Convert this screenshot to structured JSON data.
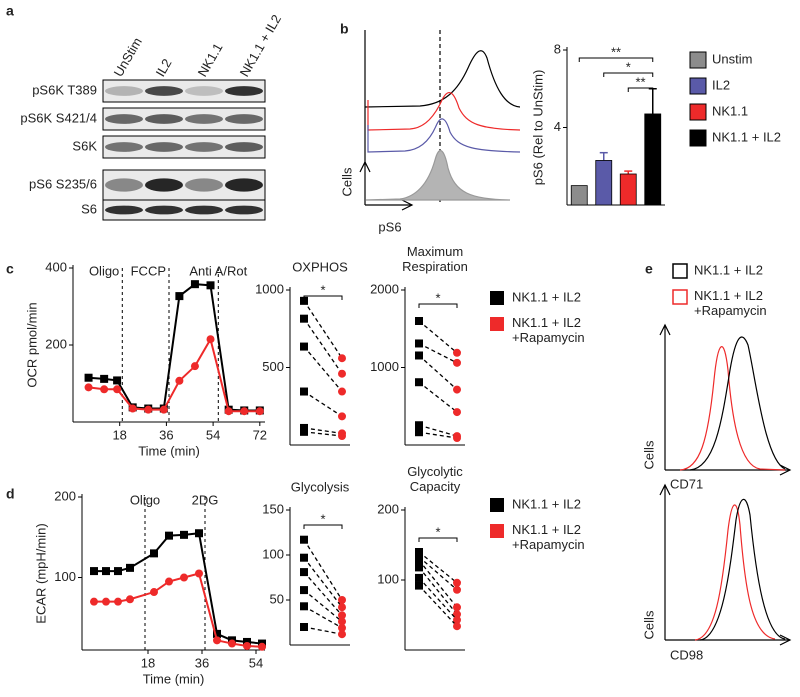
{
  "panels": {
    "a": {
      "label": "a",
      "columns": [
        "UnStim",
        "IL2",
        "NK1.1",
        "NK1.1 + IL2"
      ],
      "rows": [
        "pS6K T389",
        "pS6K S421/4",
        "S6K",
        "pS6 S235/6",
        "S6"
      ]
    },
    "b": {
      "label": "b",
      "histogram": {
        "y_label": "Cells",
        "x_label": "pS6"
      }
    },
    "c": {
      "label": "c"
    },
    "d": {
      "label": "d"
    },
    "e": {
      "label": "e",
      "legend": [
        "NK1.1 + IL2",
        "NK1.1 + IL2\n+Rapamycin"
      ],
      "histograms": [
        {
          "y_label": "Cells",
          "x_label": "CD71"
        },
        {
          "y_label": "Cells",
          "x_label": "CD98"
        }
      ]
    }
  },
  "chart_data": [
    {
      "type": "bar",
      "y_label": "pS6 (Rel to UnStim)",
      "categories": [
        "Unstim",
        "IL2",
        "NK1.1",
        "NK1.1 + IL2"
      ],
      "values": [
        1.0,
        2.3,
        1.6,
        4.7
      ],
      "errors": [
        null,
        0.4,
        0.15,
        1.3
      ],
      "colors": [
        "#8c8c8c",
        "#5a5aa8",
        "#ee2a2a",
        "#000000"
      ],
      "ylim": [
        0,
        8
      ],
      "yticks": [
        4,
        8
      ],
      "significance": [
        {
          "label": "**",
          "between": [
            0,
            3
          ]
        },
        {
          "label": "*",
          "between": [
            1,
            3
          ]
        },
        {
          "label": "**",
          "between": [
            2,
            3
          ]
        }
      ]
    },
    {
      "type": "line",
      "x_label": "Time (min)",
      "y_label": "OCR pmol/min",
      "x": [
        6,
        12,
        17,
        23,
        29,
        35,
        41,
        47,
        53,
        60,
        66,
        72
      ],
      "series": [
        {
          "name": "NK1.1 + IL2",
          "color": "#000000",
          "values": [
            115,
            112,
            108,
            38,
            35,
            35,
            327,
            358,
            355,
            32,
            30,
            30
          ]
        },
        {
          "name": "NK1.1 + IL2\n+Rapamycin",
          "color": "#ee2a2a",
          "values": [
            90,
            85,
            85,
            35,
            32,
            32,
            107,
            145,
            215,
            28,
            28,
            28
          ]
        }
      ],
      "annotations": [
        {
          "text": "Oligo",
          "x": 19
        },
        {
          "text": "FCCP",
          "x": 37
        },
        {
          "text": "Anti A/Rot",
          "x": 56
        }
      ],
      "xlim": [
        0,
        74
      ],
      "xticks": [
        18,
        36,
        54,
        72
      ],
      "ylim": [
        0,
        400
      ],
      "yticks": [
        200,
        400
      ]
    },
    {
      "type": "paired",
      "title": "OXPHOS",
      "significance": "*",
      "series": [
        {
          "color": "#000000",
          "values": [
            930,
            815,
            635,
            345,
            110,
            85
          ]
        },
        {
          "color": "#ee2a2a",
          "values": [
            560,
            460,
            345,
            185,
            75,
            58
          ]
        }
      ],
      "ylim": [
        0,
        1000
      ],
      "yticks": [
        500,
        1000
      ]
    },
    {
      "type": "paired",
      "title": "Maximum\nRespiration",
      "significance": "*",
      "series": [
        {
          "color": "#000000",
          "values": [
            1600,
            1310,
            1155,
            810,
            255,
            165
          ]
        },
        {
          "color": "#ee2a2a",
          "values": [
            1190,
            1060,
            715,
            425,
            115,
            90
          ]
        }
      ],
      "ylim": [
        0,
        2000
      ],
      "yticks": [
        1000,
        2000
      ]
    },
    {
      "type": "line",
      "x_label": "Time (min)",
      "y_label": "ECAR (mpH/min)",
      "x": [
        0,
        4,
        8,
        12,
        20,
        25,
        30,
        35,
        41,
        46,
        51,
        56
      ],
      "series": [
        {
          "name": "NK1.1 + IL2",
          "color": "#000000",
          "values": [
            108,
            108,
            108,
            112,
            130,
            152,
            153,
            155,
            30,
            22,
            20,
            18
          ]
        },
        {
          "name": "NK1.1 + IL2\n+Rapamycin",
          "color": "#ee2a2a",
          "values": [
            70,
            70,
            70,
            73,
            82,
            95,
            100,
            105,
            22,
            18,
            15,
            14
          ]
        }
      ],
      "annotations": [
        {
          "text": "Oligo",
          "x": 17
        },
        {
          "text": "2DG",
          "x": 37
        }
      ],
      "xlim": [
        -4,
        57
      ],
      "xticks": [
        18,
        36,
        54
      ],
      "ylim": [
        10,
        200
      ],
      "yticks": [
        100,
        200
      ]
    },
    {
      "type": "paired",
      "title": "Glycolysis",
      "significance": "*",
      "series": [
        {
          "color": "#000000",
          "values": [
            117,
            97,
            81,
            61,
            43,
            20
          ]
        },
        {
          "color": "#ee2a2a",
          "values": [
            50,
            42,
            33,
            26,
            19,
            12
          ]
        }
      ],
      "ylim": [
        0,
        150
      ],
      "yticks": [
        50,
        100,
        150
      ]
    },
    {
      "type": "paired",
      "title": "Glycolytic\nCapacity",
      "significance": "*",
      "series": [
        {
          "color": "#000000",
          "values": [
            140,
            133,
            128,
            118,
            103,
            92
          ]
        },
        {
          "color": "#ee2a2a",
          "values": [
            96,
            86,
            61,
            51,
            43,
            34
          ]
        }
      ],
      "ylim": [
        0,
        200
      ],
      "yticks": [
        100,
        200
      ]
    }
  ]
}
